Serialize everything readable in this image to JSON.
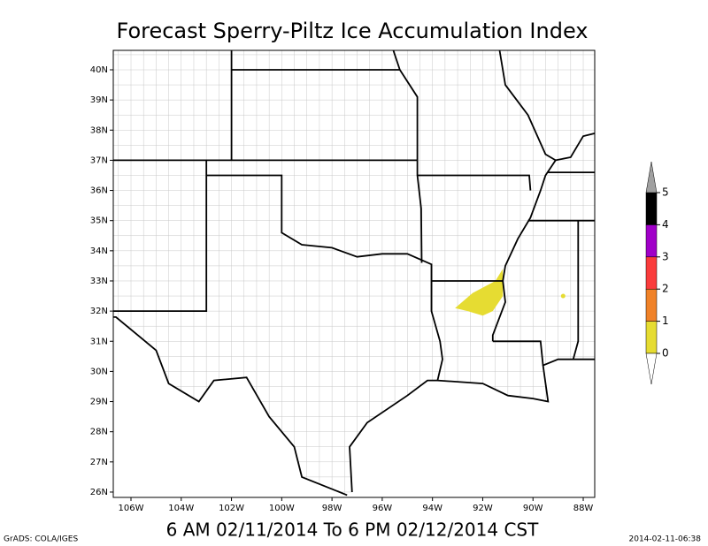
{
  "title": "Forecast Sperry-Piltz Ice Accumulation Index",
  "subtitle": "6 AM 02/11/2014 To 6 PM 02/12/2014 CST",
  "footer_left": "GrADS: COLA/IGES",
  "footer_right": "2014-02-11-06:38",
  "lat_labels": [
    "40N",
    "39N",
    "38N",
    "37N",
    "36N",
    "35N",
    "34N",
    "33N",
    "32N",
    "31N",
    "30N",
    "29N",
    "28N",
    "27N",
    "26N"
  ],
  "lon_labels": [
    "106W",
    "104W",
    "102W",
    "100W",
    "98W",
    "96W",
    "94W",
    "92W",
    "90W",
    "88W"
  ],
  "colorbar": {
    "levels": [
      0,
      1,
      2,
      3,
      4,
      5
    ],
    "colors": [
      "#ffffff",
      "#e6dc32",
      "#f08228",
      "#fa3c3c",
      "#a000c8",
      "#000000",
      "#a0a0a0"
    ]
  }
}
